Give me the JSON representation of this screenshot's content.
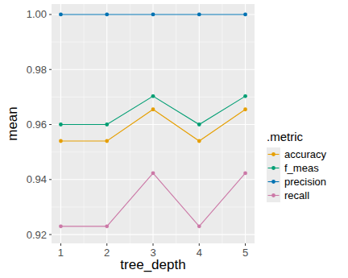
{
  "chart_data": {
    "type": "line",
    "x_label": "tree_depth",
    "y_label": "mean",
    "legend_title": ".metric",
    "x": [
      1,
      2,
      3,
      4,
      5
    ],
    "series": [
      {
        "name": "accuracy",
        "color": "#E69F00",
        "marker": "circle",
        "values": [
          0.954,
          0.954,
          0.9655,
          0.954,
          0.9655
        ]
      },
      {
        "name": "f_meas",
        "color": "#009E73",
        "marker": "circle",
        "values": [
          0.96,
          0.96,
          0.9703,
          0.96,
          0.9703
        ]
      },
      {
        "name": "precision",
        "color": "#0072B2",
        "marker": "circle",
        "values": [
          1,
          1,
          1,
          1,
          1
        ]
      },
      {
        "name": "recall",
        "color": "#CC79A7",
        "marker": "circle",
        "values": [
          0.923,
          0.923,
          0.9423,
          0.923,
          0.9423
        ]
      }
    ],
    "xlim": [
      0.8,
      5.2
    ],
    "xticks": [
      1,
      2,
      3,
      4,
      5
    ],
    "ylim": [
      0.9168,
      1.0038
    ],
    "yticks": [
      0.92,
      0.94,
      0.96,
      0.98,
      {
        "value": 1,
        "label": "1.00"
      }
    ],
    "grid": true,
    "legend": "right"
  }
}
